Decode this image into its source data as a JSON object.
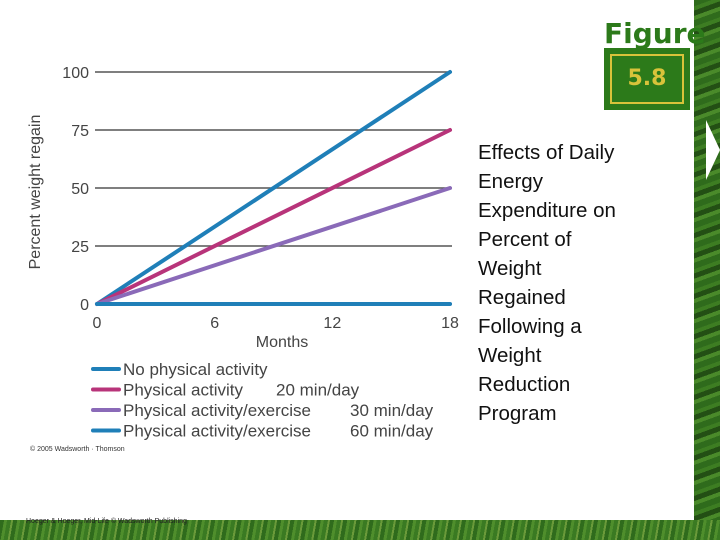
{
  "figure": {
    "word": "Figure",
    "number": "5.8"
  },
  "caption_lines": [
    "Effects of Daily",
    "Energy",
    "Expenditure on",
    "Percent of",
    "Weight",
    "Regained",
    "Following a",
    "Weight",
    "Reduction",
    "Program"
  ],
  "copyright": "© 2005 Wadsworth · Thomson",
  "footer_credit": "Hoeger & Hoeger, Mid-Life © Wadsworth Publishing",
  "colors": {
    "grid": "#555555",
    "axis_text": "#444444",
    "brand_green": "#2c7a1a",
    "badge_gold": "#d8c33a"
  },
  "chart_data": {
    "type": "line",
    "title": "",
    "xlabel": "Months",
    "ylabel": "Percent weight regain",
    "x_ticks": [
      0,
      6,
      12,
      18
    ],
    "y_ticks": [
      0,
      25,
      50,
      75,
      100
    ],
    "xlim": [
      0,
      18
    ],
    "ylim": [
      0,
      100
    ],
    "grid": "horizontal",
    "legend_position": "bottom-left",
    "series": [
      {
        "name": "No physical activity",
        "detail": "",
        "color": "#1f7fb8",
        "x": [
          0,
          18
        ],
        "y": [
          0,
          100
        ]
      },
      {
        "name": "Physical activity",
        "detail": "20 min/day",
        "color": "#b8347a",
        "x": [
          0,
          18
        ],
        "y": [
          0,
          75
        ]
      },
      {
        "name": "Physical activity/exercise",
        "detail": "30 min/day",
        "color": "#8a6ab8",
        "x": [
          0,
          18
        ],
        "y": [
          0,
          50
        ]
      },
      {
        "name": "Physical activity/exercise",
        "detail": "60 min/day",
        "color": "#1f7fb8",
        "x": [
          0,
          18
        ],
        "y": [
          0,
          0
        ]
      }
    ]
  }
}
